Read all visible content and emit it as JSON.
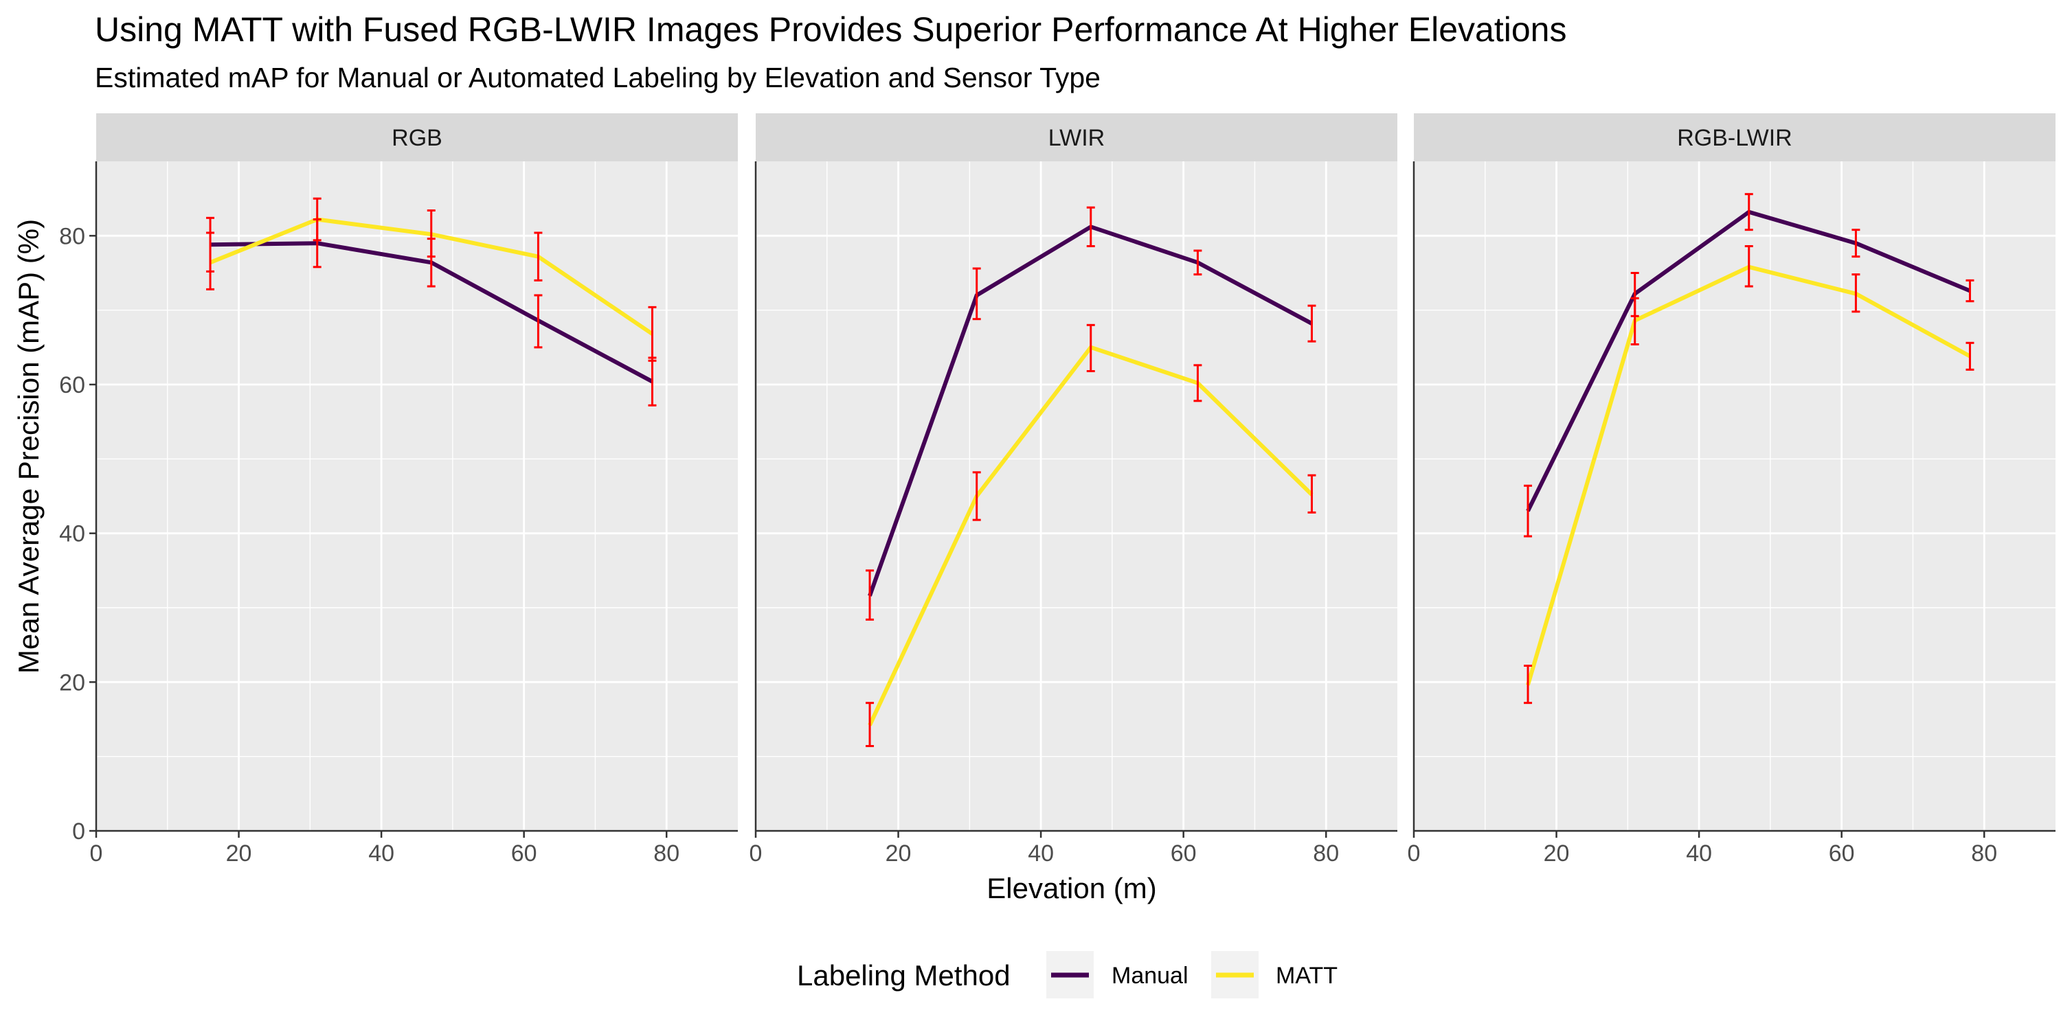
{
  "chart_data": {
    "type": "line",
    "title": "Using MATT with Fused RGB-LWIR Images Provides Superior Performance At Higher Elevations",
    "subtitle": "Estimated mAP for Manual or Automated Labeling by Elevation and Sensor Type",
    "xlabel": "Elevation (m)",
    "ylabel": "Mean Average Precision (mAP) (%)",
    "xlim": [
      0,
      90
    ],
    "ylim": [
      0,
      90
    ],
    "x_ticks": [
      0,
      20,
      40,
      60,
      80
    ],
    "y_ticks": [
      0,
      20,
      40,
      60,
      80
    ],
    "grid": true,
    "legend": {
      "title": "Labeling Method",
      "position": "bottom",
      "entries": [
        "Manual",
        "MATT"
      ]
    },
    "colors": {
      "Manual": "#440154",
      "MATT": "#FDE725",
      "error_bar": "#FF0000",
      "panel_bg": "#EBEBEB",
      "strip_bg": "#D9D9D9",
      "grid": "#FFFFFF"
    },
    "x": [
      16,
      31,
      47,
      62,
      78
    ],
    "panels": [
      {
        "name": "RGB",
        "series": [
          {
            "name": "Manual",
            "values": [
              78.8,
              79.0,
              76.4,
              68.6,
              60.4
            ],
            "err_low": [
              75.2,
              75.8,
              73.2,
              65.0,
              57.2
            ],
            "err_high": [
              82.4,
              82.2,
              79.6,
              72.0,
              63.6
            ]
          },
          {
            "name": "MATT",
            "values": [
              76.4,
              82.2,
              80.2,
              77.2,
              66.8
            ],
            "err_low": [
              72.8,
              79.4,
              77.2,
              74.0,
              63.2
            ],
            "err_high": [
              80.4,
              85.0,
              83.4,
              80.4,
              70.4
            ]
          }
        ]
      },
      {
        "name": "LWIR",
        "series": [
          {
            "name": "Manual",
            "values": [
              31.6,
              72.0,
              81.2,
              76.4,
              68.2
            ],
            "err_low": [
              28.4,
              68.8,
              78.6,
              74.8,
              65.8
            ],
            "err_high": [
              35.0,
              75.6,
              83.8,
              78.0,
              70.6
            ]
          },
          {
            "name": "MATT",
            "values": [
              14.2,
              45.0,
              65.0,
              60.2,
              45.2
            ],
            "err_low": [
              11.4,
              41.8,
              61.8,
              57.8,
              42.8
            ],
            "err_high": [
              17.2,
              48.2,
              68.0,
              62.6,
              47.8
            ]
          }
        ]
      },
      {
        "name": "RGB-LWIR",
        "series": [
          {
            "name": "Manual",
            "values": [
              43.0,
              72.2,
              83.2,
              79.0,
              72.6
            ],
            "err_low": [
              39.6,
              69.2,
              80.8,
              77.2,
              71.2
            ],
            "err_high": [
              46.4,
              75.0,
              85.6,
              80.8,
              74.0
            ]
          },
          {
            "name": "MATT",
            "values": [
              19.6,
              68.6,
              75.8,
              72.2,
              63.8
            ],
            "err_low": [
              17.2,
              65.4,
              73.2,
              69.8,
              62.0
            ],
            "err_high": [
              22.2,
              71.6,
              78.6,
              74.8,
              65.6
            ]
          }
        ]
      }
    ]
  }
}
